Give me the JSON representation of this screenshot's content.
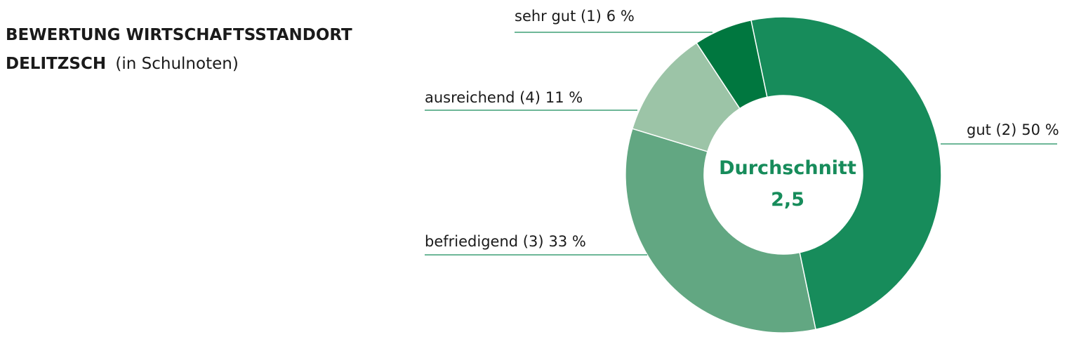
{
  "chart_data": {
    "type": "donut",
    "title": "BEWERTUNG WIRTSCHAFTSSTANDORT DELITZSCH",
    "subtitle": "(in Schulnoten)",
    "center_title": "Durchschnitt",
    "center_value": {
      "value": 2.5,
      "label": "2,5"
    },
    "categories": [
      "sehr gut (1)",
      "gut (2)",
      "befriedigend (3)",
      "ausreichend (4)"
    ],
    "values": [
      6,
      50,
      33,
      11
    ],
    "value_labels": [
      "6 %",
      "50 %",
      "33 %",
      "11 %"
    ],
    "colors": [
      "#00773f",
      "#178c5b",
      "#62a782",
      "#9cc4a7"
    ]
  }
}
